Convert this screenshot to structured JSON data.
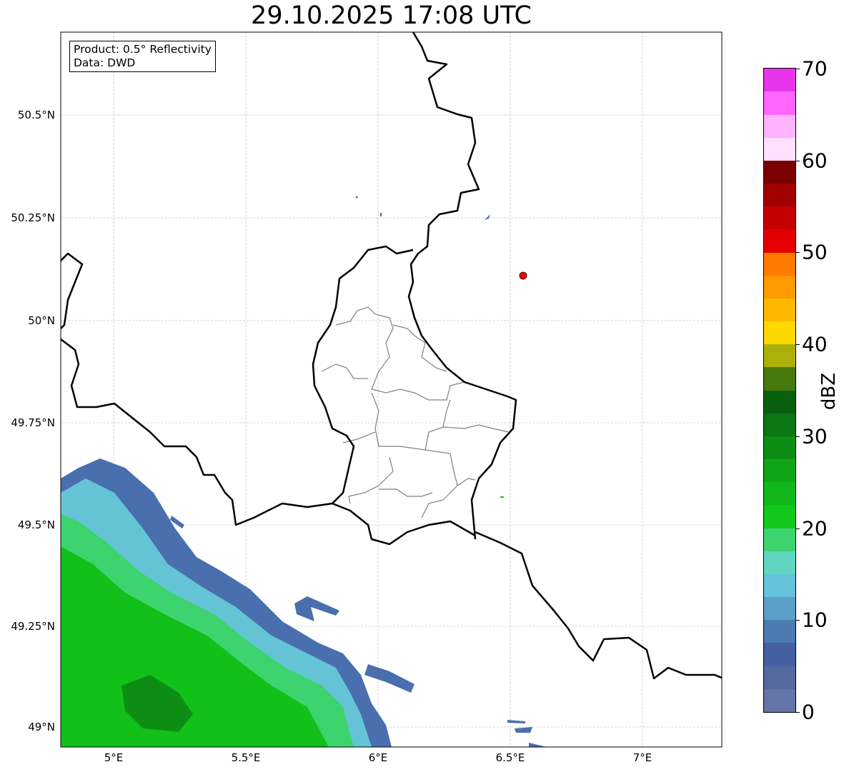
{
  "title": "29.10.2025 17:08 UTC",
  "info": {
    "line1": "Product: 0.5° Reflectivity",
    "line2": "Data: DWD"
  },
  "lat_ticks": [
    "50.5°N",
    "50.25°N",
    "50°N",
    "49.75°N",
    "49.5°N",
    "49.25°N",
    "49°N"
  ],
  "lon_ticks": [
    "5°E",
    "5.5°E",
    "6°E",
    "6.5°E",
    "7°E"
  ],
  "colorbar": {
    "label": "dBZ",
    "ticks": [
      "0",
      "10",
      "20",
      "30",
      "40",
      "50",
      "60",
      "70"
    ],
    "range": [
      0,
      70
    ],
    "step": 2.5,
    "colors": [
      "#6675a8",
      "#55699f",
      "#4560a2",
      "#4b7bb1",
      "#5a9fc8",
      "#64c2db",
      "#60d6c2",
      "#3dd470",
      "#12c91b",
      "#12b81a",
      "#10a516",
      "#0e8d14",
      "#0c7514",
      "#085f0e",
      "#47790c",
      "#aeb00a",
      "#ffd800",
      "#ffb700",
      "#ff9a00",
      "#ff7b00",
      "#e40000",
      "#c40000",
      "#a00000",
      "#7a0000",
      "#ffe0ff",
      "#ffb2ff",
      "#ff66ff",
      "#e834ec"
    ]
  },
  "marker": {
    "color": "#ff0000"
  }
}
